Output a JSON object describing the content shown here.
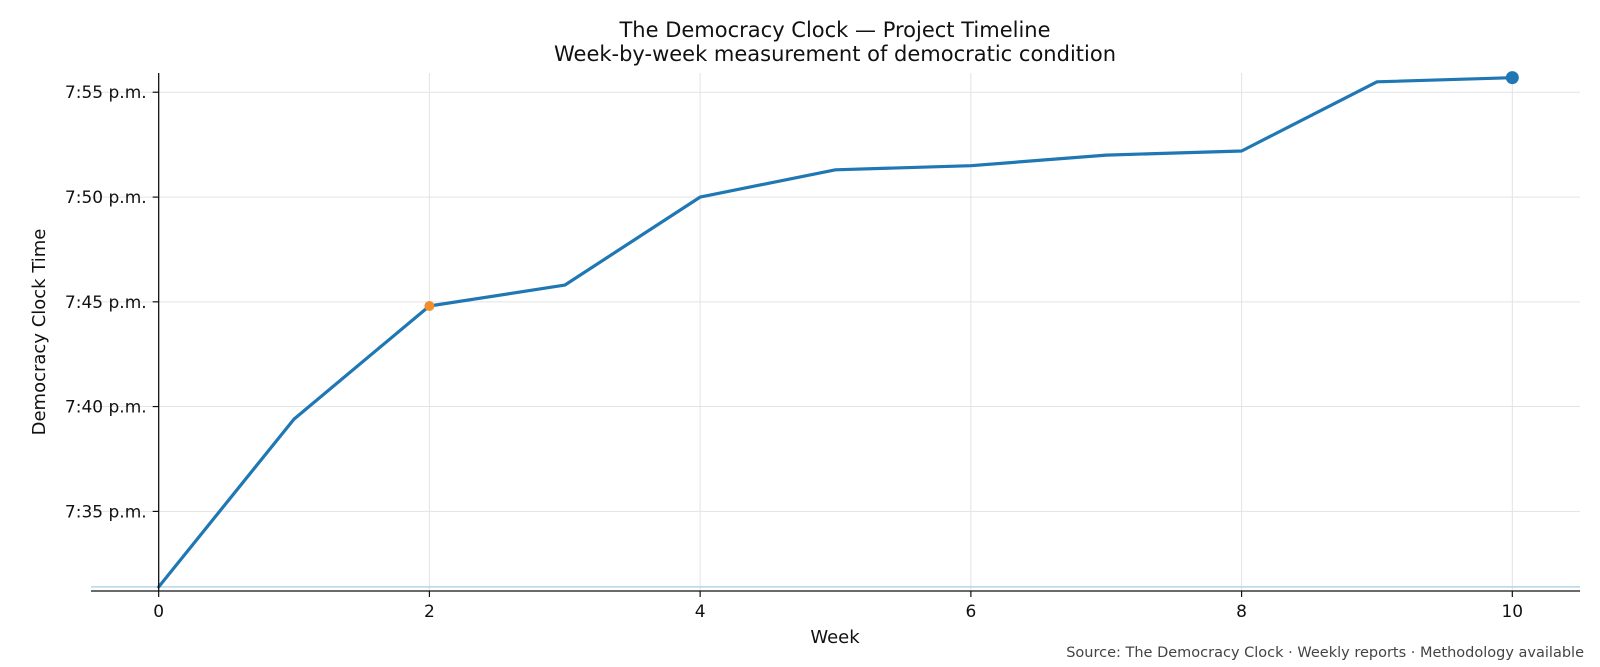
{
  "chart_data": {
    "type": "line",
    "title": "The Democracy Clock — Project Timeline",
    "subtitle": "Week-by-week measurement of democratic condition",
    "xlabel": "Week",
    "ylabel": "Democracy Clock Time",
    "source": "Source: The Democracy Clock · Weekly reports · Methodology available",
    "xlim": [
      -0.5,
      10.5
    ],
    "ylim": [
      7.52,
      7.932
    ],
    "x_ticks": [
      0,
      2,
      4,
      6,
      8,
      10
    ],
    "y_ticks": [
      {
        "value": 7.5833,
        "label": "7:35 p.m."
      },
      {
        "value": 7.6667,
        "label": "7:40 p.m."
      },
      {
        "value": 7.75,
        "label": "7:45 p.m."
      },
      {
        "value": 7.8333,
        "label": "7:50 p.m."
      },
      {
        "value": 7.9167,
        "label": "7:55 p.m."
      }
    ],
    "grid": true,
    "series": [
      {
        "x": [
          0,
          1,
          2,
          3,
          4,
          5,
          6,
          7,
          8,
          9,
          10
        ],
        "y": [
          7.5233,
          7.6567,
          7.7467,
          7.7633,
          7.8333,
          7.855,
          7.8583,
          7.8667,
          7.87,
          7.925,
          7.9283
        ],
        "color": "#1f77b4"
      }
    ],
    "baseline": {
      "y": 7.5233,
      "color": "#a6cfe0"
    },
    "highlight_points": [
      {
        "x": 2,
        "y": 7.7467,
        "color": "#f28e2b"
      },
      {
        "x": 10,
        "y": 7.9283,
        "color": "#1f77b4"
      }
    ]
  }
}
